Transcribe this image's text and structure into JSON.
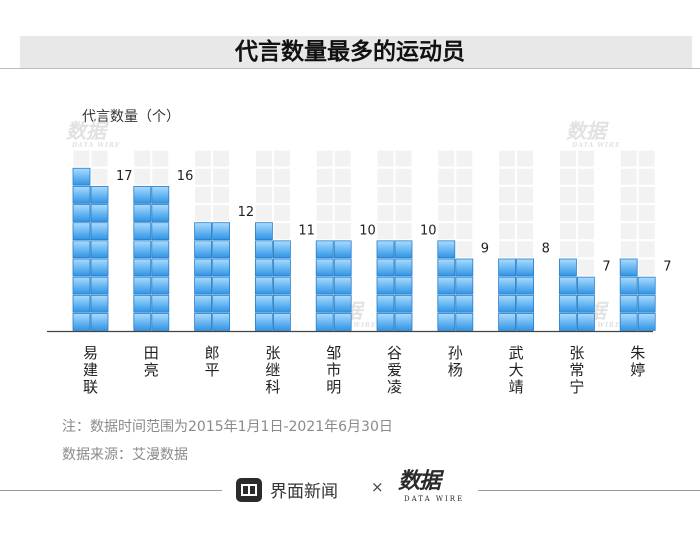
{
  "title": "代言数量最多的运动员",
  "chart_data": {
    "type": "bar",
    "ylabel": "代言数量（个）",
    "categories": [
      "易建联",
      "田亮",
      "郎平",
      "张继科",
      "邹市明",
      "谷爱凌",
      "孙杨",
      "武大靖",
      "张常宁",
      "朱婷"
    ],
    "values": [
      17,
      16,
      12,
      11,
      10,
      10,
      9,
      8,
      7,
      7
    ],
    "unit_blocks_max": 20,
    "grid": false
  },
  "notes": {
    "range": "注：数据时间范围为2015年1月1日-2021年6月30日",
    "source": "数据来源：艾漫数据"
  },
  "footer": {
    "brand": "界面新闻",
    "times": "×",
    "partner": "数据",
    "partner_sub": "DATA WIRE"
  },
  "watermark": {
    "text": "数据",
    "sub": "DATA WIRE"
  },
  "colors": {
    "bar_top": "#a9dcff",
    "bar_bottom": "#2f95e6",
    "bar_border": "#2a7cc7",
    "track": "#ececec",
    "track_block": "#f2f2f2",
    "baseline": "#444444"
  }
}
